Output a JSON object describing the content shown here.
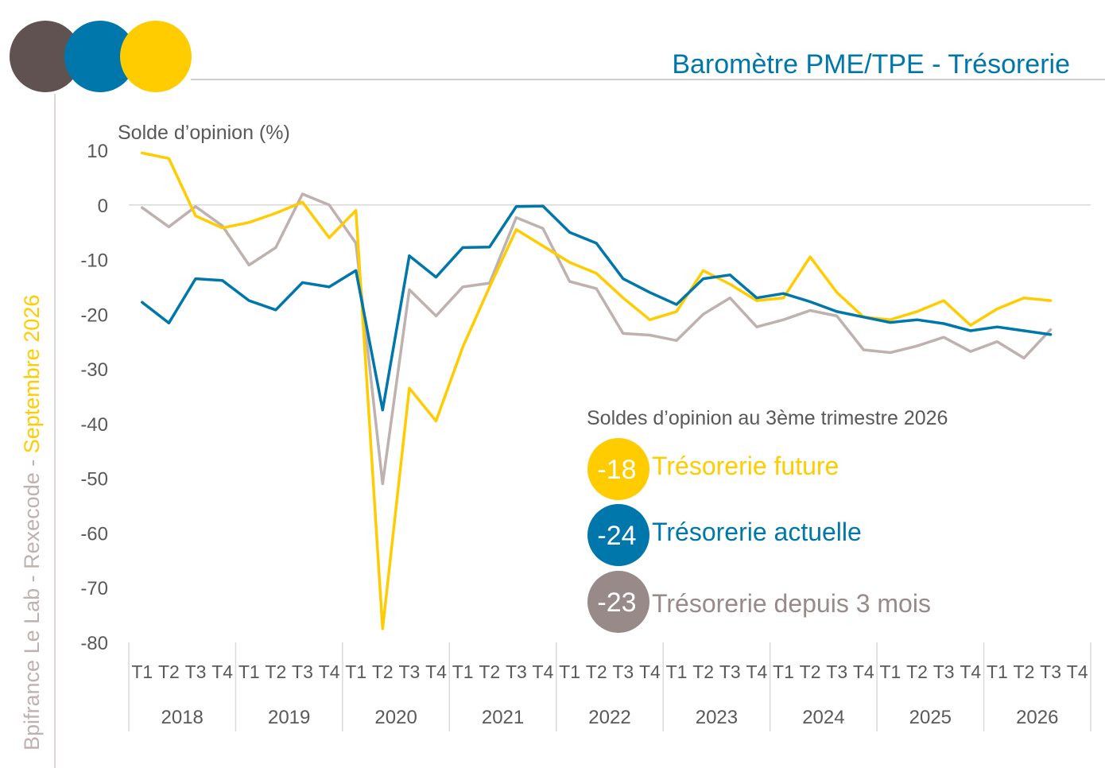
{
  "header": {
    "title": "Baromètre PME/TPE - Trésorerie",
    "side_label_part1": "Bpifrance Le Lab - Rexecode - ",
    "side_label_part2": "Septembre 2026"
  },
  "colors": {
    "yellow": "#FFCC00",
    "blue": "#0077AA",
    "grey": "#BFB1B0",
    "dark": "#5F5250",
    "badge_grey": "#978A88",
    "text": "#595959",
    "axis": "#D9D9D9"
  },
  "legend": {
    "heading": "Soldes d’opinion au 3ème trimestre 2026",
    "items": [
      {
        "value": "-18",
        "label": "Trésorerie future"
      },
      {
        "value": "-24",
        "label": "Trésorerie actuelle"
      },
      {
        "value": "-23",
        "label": "Trésorerie depuis 3 mois"
      }
    ]
  },
  "chart_data": {
    "type": "line",
    "ylabel": "Solde d’opinion (%)",
    "ylim": [
      -80,
      10
    ],
    "yticks": [
      10,
      0,
      -10,
      -20,
      -30,
      -40,
      -50,
      -60,
      -70,
      -80
    ],
    "grid": false,
    "quarters": [
      "T1",
      "T2",
      "T3",
      "T4"
    ],
    "years": [
      "2018",
      "2019",
      "2020",
      "2021",
      "2022",
      "2023",
      "2024",
      "2025",
      "2026"
    ],
    "series": [
      {
        "name": "Trésorerie future",
        "color": "#FFCC00",
        "values": [
          9.5,
          8.5,
          -2,
          -4.2,
          -3.2,
          -1.5,
          0.5,
          -6,
          -1,
          -77.5,
          -33.5,
          -39.5,
          -26,
          -15,
          -4.5,
          -7.5,
          -10.5,
          -12.5,
          -17,
          -21,
          -19.5,
          -12,
          -14.5,
          -17.5,
          -17,
          -9.5,
          -16,
          -20.5,
          -21,
          -19.5,
          -17.5,
          -22,
          -19,
          -17,
          -17.5
        ]
      },
      {
        "name": "Trésorerie actuelle",
        "color": "#0077AA",
        "values": [
          -17.8,
          -21.6,
          -13.5,
          -13.8,
          -17.5,
          -19.2,
          -14.2,
          -15,
          -12,
          -37.5,
          -9.3,
          -13.2,
          -7.8,
          -7.7,
          -0.3,
          -0.2,
          -5,
          -7,
          -13.5,
          -16,
          -18.2,
          -13.5,
          -12.8,
          -17,
          -16.2,
          -17.7,
          -19.5,
          -20.5,
          -21.5,
          -21,
          -21.7,
          -23,
          -22.3,
          -23,
          -23.7
        ]
      },
      {
        "name": "Trésorerie depuis 3 mois",
        "color": "#BFB1B0",
        "values": [
          -0.5,
          -4,
          -0.3,
          -3.8,
          -11,
          -7.8,
          2,
          0,
          -7,
          -51,
          -15.5,
          -20.3,
          -15,
          -14.3,
          -2.3,
          -4.3,
          -14,
          -15.3,
          -23.5,
          -23.8,
          -24.8,
          -20,
          -17,
          -22.3,
          -21,
          -19.3,
          -20.3,
          -26.5,
          -27,
          -25.8,
          -24.2,
          -26.8,
          -25,
          -28,
          -22.8
        ]
      }
    ]
  }
}
